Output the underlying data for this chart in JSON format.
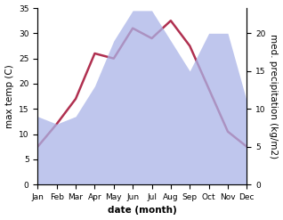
{
  "months": [
    "Jan",
    "Feb",
    "Mar",
    "Apr",
    "May",
    "Jun",
    "Jul",
    "Aug",
    "Sep",
    "Oct",
    "Nov",
    "Dec"
  ],
  "temperature": [
    7.5,
    12.0,
    17.0,
    26.0,
    25.0,
    31.0,
    29.0,
    32.5,
    27.5,
    19.0,
    10.5,
    7.5
  ],
  "precipitation": [
    9,
    8,
    9,
    13,
    19,
    23,
    23,
    19,
    15,
    20,
    20,
    11
  ],
  "temp_ylim": [
    0,
    35
  ],
  "precip_ylim": [
    0,
    23.333
  ],
  "temp_yticks": [
    0,
    5,
    10,
    15,
    20,
    25,
    30,
    35
  ],
  "precip_yticks": [
    0,
    5,
    10,
    15,
    20
  ],
  "xlabel": "date (month)",
  "ylabel_left": "max temp (C)",
  "ylabel_right": "med. precipitation (kg/m2)",
  "temp_color": "#b03050",
  "precip_fill_color": "#aab4e8",
  "precip_fill_alpha": 0.75,
  "background_color": "#ffffff",
  "label_fontsize": 7.5,
  "tick_fontsize": 6.5
}
